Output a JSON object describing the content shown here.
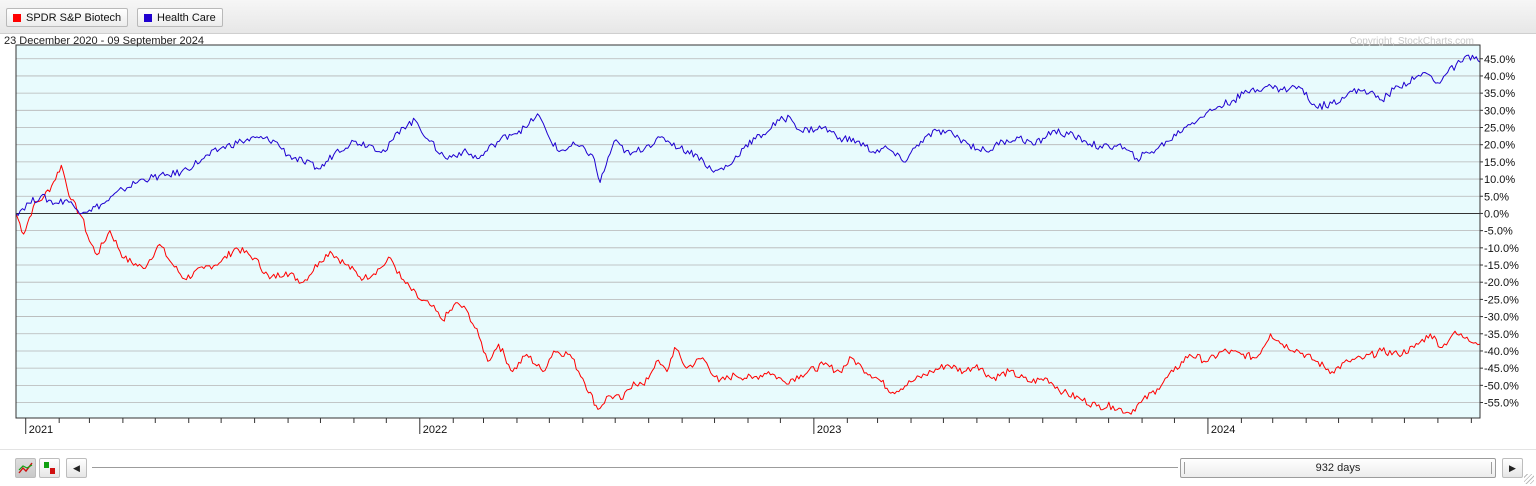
{
  "legend": {
    "items": [
      {
        "label": "SPDR S&P Biotech",
        "color": "#ff0000"
      },
      {
        "label": "Health Care",
        "color": "#1f00d0"
      }
    ]
  },
  "colors": {
    "plot_background": "#e8fbfd",
    "gridline": "#b5b5b5",
    "zero_line": "#333333",
    "frame": "#333333"
  },
  "footer": {
    "thumb_label": "932 days",
    "icons": [
      "line-chart-icon",
      "up-down-bars-icon",
      "left-arrow-icon",
      "right-arrow-icon"
    ]
  },
  "chart_data": {
    "type": "line",
    "date_range": "23 December 2020 - 09 September 2024",
    "copyright": "Copyright, StockCharts.com",
    "x_range": [
      "2020-12-23",
      "2024-09-09"
    ],
    "year_labels": [
      {
        "label": "2021",
        "date": "2021-01-01"
      },
      {
        "label": "2022",
        "date": "2022-01-01"
      },
      {
        "label": "2023",
        "date": "2023-01-01"
      },
      {
        "label": "2024",
        "date": "2024-01-01"
      }
    ],
    "ylim": [
      -59.5,
      49.0
    ],
    "y_ticks": [
      45,
      40,
      35,
      30,
      25,
      20,
      15,
      10,
      5,
      0,
      -5,
      -10,
      -15,
      -20,
      -25,
      -30,
      -35,
      -40,
      -45,
      -50,
      -55
    ],
    "y_tick_labels": [
      "45.0%",
      "40.0%",
      "35.0%",
      "30.0%",
      "25.0%",
      "20.0%",
      "15.0%",
      "10.0%",
      "5.0%",
      "0.0%",
      "-5.0%",
      "-10.0%",
      "-15.0%",
      "-20.0%",
      "-25.0%",
      "-30.0%",
      "-35.0%",
      "-40.0%",
      "-45.0%",
      "-50.0%",
      "-55.0%"
    ],
    "series": [
      {
        "name": "SPDR S&P Biotech",
        "color": "#ff0000",
        "points": [
          [
            "2020-12-23",
            0
          ],
          [
            "2020-12-30",
            -6
          ],
          [
            "2021-01-08",
            2
          ],
          [
            "2021-01-18",
            5
          ],
          [
            "2021-01-25",
            8
          ],
          [
            "2021-02-03",
            14
          ],
          [
            "2021-02-12",
            4
          ],
          [
            "2021-02-22",
            -1
          ],
          [
            "2021-03-01",
            -8
          ],
          [
            "2021-03-08",
            -12
          ],
          [
            "2021-03-20",
            -5
          ],
          [
            "2021-04-02",
            -13
          ],
          [
            "2021-04-20",
            -16
          ],
          [
            "2021-05-05",
            -9
          ],
          [
            "2021-05-15",
            -14
          ],
          [
            "2021-05-28",
            -19
          ],
          [
            "2021-06-15",
            -16
          ],
          [
            "2021-07-01",
            -14
          ],
          [
            "2021-07-15",
            -10
          ],
          [
            "2021-08-01",
            -13
          ],
          [
            "2021-08-15",
            -19
          ],
          [
            "2021-08-30",
            -17
          ],
          [
            "2021-09-15",
            -20
          ],
          [
            "2021-09-30",
            -14
          ],
          [
            "2021-10-10",
            -11
          ],
          [
            "2021-10-25",
            -15
          ],
          [
            "2021-11-10",
            -19
          ],
          [
            "2021-11-25",
            -16
          ],
          [
            "2021-12-05",
            -13
          ],
          [
            "2021-12-15",
            -19
          ],
          [
            "2022-01-01",
            -25
          ],
          [
            "2022-01-12",
            -27
          ],
          [
            "2022-01-22",
            -31
          ],
          [
            "2022-02-05",
            -26
          ],
          [
            "2022-02-15",
            -29
          ],
          [
            "2022-02-25",
            -36
          ],
          [
            "2022-03-05",
            -43
          ],
          [
            "2022-03-15",
            -38
          ],
          [
            "2022-03-28",
            -46
          ],
          [
            "2022-04-10",
            -41
          ],
          [
            "2022-04-25",
            -46
          ],
          [
            "2022-05-05",
            -40
          ],
          [
            "2022-05-20",
            -41
          ],
          [
            "2022-06-01",
            -48
          ],
          [
            "2022-06-15",
            -57
          ],
          [
            "2022-06-25",
            -53
          ],
          [
            "2022-07-08",
            -54
          ],
          [
            "2022-07-18",
            -49
          ],
          [
            "2022-07-28",
            -50
          ],
          [
            "2022-08-08",
            -43
          ],
          [
            "2022-08-18",
            -46
          ],
          [
            "2022-08-25",
            -39
          ],
          [
            "2022-09-05",
            -45
          ],
          [
            "2022-09-20",
            -42
          ],
          [
            "2022-10-05",
            -49
          ],
          [
            "2022-10-20",
            -47
          ],
          [
            "2022-11-05",
            -48
          ],
          [
            "2022-11-20",
            -46
          ],
          [
            "2022-12-05",
            -49
          ],
          [
            "2022-12-20",
            -47
          ],
          [
            "2023-01-10",
            -44
          ],
          [
            "2023-01-25",
            -46
          ],
          [
            "2023-02-05",
            -42
          ],
          [
            "2023-02-15",
            -45
          ],
          [
            "2023-03-01",
            -48
          ],
          [
            "2023-03-15",
            -52
          ],
          [
            "2023-04-01",
            -49
          ],
          [
            "2023-04-20",
            -46
          ],
          [
            "2023-05-05",
            -44
          ],
          [
            "2023-05-20",
            -46
          ],
          [
            "2023-06-01",
            -44
          ],
          [
            "2023-06-15",
            -48
          ],
          [
            "2023-07-01",
            -46
          ],
          [
            "2023-07-20",
            -49
          ],
          [
            "2023-08-05",
            -48
          ],
          [
            "2023-08-20",
            -52
          ],
          [
            "2023-09-05",
            -54
          ],
          [
            "2023-09-20",
            -56
          ],
          [
            "2023-10-05",
            -56
          ],
          [
            "2023-10-20",
            -58
          ],
          [
            "2023-10-31",
            -55
          ],
          [
            "2023-11-15",
            -51
          ],
          [
            "2023-11-30",
            -46
          ],
          [
            "2023-12-15",
            -41
          ],
          [
            "2024-01-01",
            -43
          ],
          [
            "2024-01-15",
            -40
          ],
          [
            "2024-02-01",
            -41
          ],
          [
            "2024-02-15",
            -42
          ],
          [
            "2024-02-28",
            -35
          ],
          [
            "2024-03-10",
            -38
          ],
          [
            "2024-03-25",
            -40
          ],
          [
            "2024-04-10",
            -43
          ],
          [
            "2024-04-25",
            -46
          ],
          [
            "2024-05-10",
            -43
          ],
          [
            "2024-05-25",
            -42
          ],
          [
            "2024-06-10",
            -40
          ],
          [
            "2024-06-25",
            -41
          ],
          [
            "2024-07-10",
            -39
          ],
          [
            "2024-07-25",
            -35
          ],
          [
            "2024-08-05",
            -39
          ],
          [
            "2024-08-15",
            -35
          ],
          [
            "2024-08-28",
            -36
          ],
          [
            "2024-09-09",
            -38
          ]
        ]
      },
      {
        "name": "Health Care",
        "color": "#1f00d0",
        "points": [
          [
            "2020-12-23",
            0
          ],
          [
            "2021-01-04",
            3
          ],
          [
            "2021-01-15",
            5
          ],
          [
            "2021-01-28",
            3
          ],
          [
            "2021-02-08",
            4
          ],
          [
            "2021-02-18",
            1
          ],
          [
            "2021-03-01",
            1
          ],
          [
            "2021-03-15",
            3
          ],
          [
            "2021-04-01",
            7
          ],
          [
            "2021-04-20",
            10
          ],
          [
            "2021-05-10",
            11
          ],
          [
            "2021-05-25",
            12
          ],
          [
            "2021-06-15",
            16
          ],
          [
            "2021-07-01",
            19
          ],
          [
            "2021-07-20",
            21
          ],
          [
            "2021-08-05",
            22
          ],
          [
            "2021-08-20",
            21
          ],
          [
            "2021-09-01",
            17
          ],
          [
            "2021-09-15",
            15
          ],
          [
            "2021-10-01",
            13
          ],
          [
            "2021-10-15",
            18
          ],
          [
            "2021-11-01",
            21
          ],
          [
            "2021-11-15",
            20
          ],
          [
            "2021-11-30",
            18
          ],
          [
            "2021-12-15",
            25
          ],
          [
            "2021-12-28",
            27
          ],
          [
            "2022-01-10",
            21
          ],
          [
            "2022-01-25",
            16
          ],
          [
            "2022-02-10",
            18
          ],
          [
            "2022-02-25",
            16
          ],
          [
            "2022-03-10",
            20
          ],
          [
            "2022-03-25",
            23
          ],
          [
            "2022-04-10",
            25
          ],
          [
            "2022-04-20",
            29
          ],
          [
            "2022-05-01",
            22
          ],
          [
            "2022-05-10",
            18
          ],
          [
            "2022-05-25",
            20
          ],
          [
            "2022-06-10",
            17
          ],
          [
            "2022-06-17",
            9
          ],
          [
            "2022-06-30",
            21
          ],
          [
            "2022-07-15",
            17
          ],
          [
            "2022-08-01",
            20
          ],
          [
            "2022-08-15",
            22
          ],
          [
            "2022-08-30",
            19
          ],
          [
            "2022-09-15",
            17
          ],
          [
            "2022-09-30",
            12
          ],
          [
            "2022-10-15",
            14
          ],
          [
            "2022-10-30",
            20
          ],
          [
            "2022-11-15",
            23
          ],
          [
            "2022-11-30",
            27
          ],
          [
            "2022-12-10",
            28
          ],
          [
            "2022-12-20",
            24
          ],
          [
            "2023-01-10",
            25
          ],
          [
            "2023-01-25",
            22
          ],
          [
            "2023-02-10",
            21
          ],
          [
            "2023-02-25",
            18
          ],
          [
            "2023-03-10",
            19
          ],
          [
            "2023-03-25",
            15
          ],
          [
            "2023-04-10",
            21
          ],
          [
            "2023-04-25",
            24
          ],
          [
            "2023-05-10",
            23
          ],
          [
            "2023-05-25",
            20
          ],
          [
            "2023-06-10",
            18
          ],
          [
            "2023-06-25",
            21
          ],
          [
            "2023-07-10",
            22
          ],
          [
            "2023-07-25",
            20
          ],
          [
            "2023-08-10",
            24
          ],
          [
            "2023-08-25",
            23
          ],
          [
            "2023-09-10",
            21
          ],
          [
            "2023-09-25",
            19
          ],
          [
            "2023-10-10",
            20
          ],
          [
            "2023-10-27",
            16
          ],
          [
            "2023-11-10",
            18
          ],
          [
            "2023-11-25",
            21
          ],
          [
            "2023-12-10",
            25
          ],
          [
            "2023-12-25",
            28
          ],
          [
            "2024-01-10",
            31
          ],
          [
            "2024-01-25",
            33
          ],
          [
            "2024-02-10",
            36
          ],
          [
            "2024-02-25",
            37
          ],
          [
            "2024-03-10",
            36
          ],
          [
            "2024-03-25",
            37
          ],
          [
            "2024-04-10",
            31
          ],
          [
            "2024-04-25",
            32
          ],
          [
            "2024-05-10",
            35
          ],
          [
            "2024-05-25",
            36
          ],
          [
            "2024-06-10",
            33
          ],
          [
            "2024-06-25",
            37
          ],
          [
            "2024-07-10",
            39
          ],
          [
            "2024-07-20",
            41
          ],
          [
            "2024-08-01",
            38
          ],
          [
            "2024-08-10",
            41
          ],
          [
            "2024-08-22",
            44
          ],
          [
            "2024-09-02",
            46
          ],
          [
            "2024-09-09",
            44
          ]
        ]
      }
    ]
  }
}
